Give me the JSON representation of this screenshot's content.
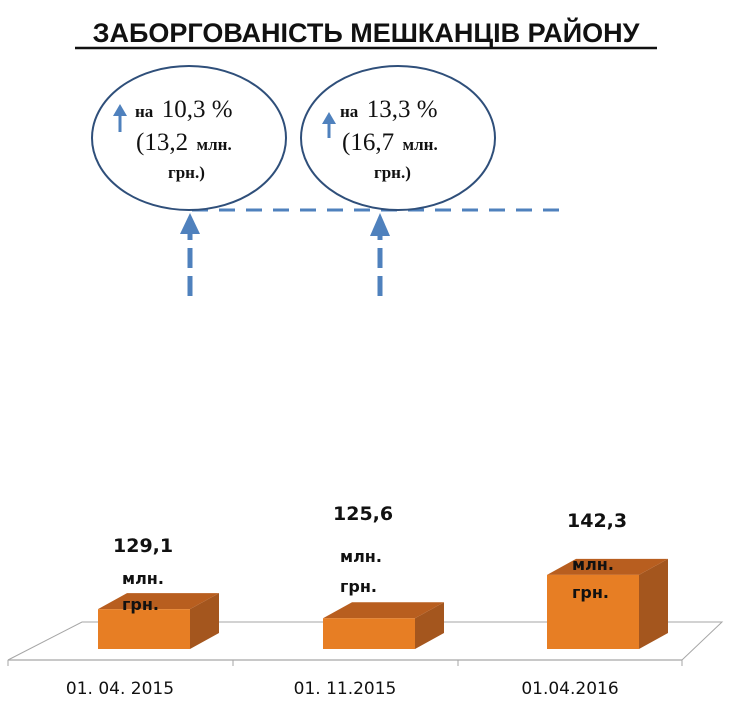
{
  "chart_data": {
    "type": "bar",
    "title": "ЗАБОРГОВАНІСТЬ МЕШКАНЦІВ РАЙОНУ",
    "categories": [
      "01. 04. 2015",
      "01. 11.2015",
      "01.04.2016"
    ],
    "values": [
      129.1,
      125.6,
      142.3
    ],
    "value_labels": [
      "129,1",
      "125,6",
      "142,3"
    ],
    "unit_lines": [
      "млн.",
      "грн."
    ],
    "annotations": [
      {
        "line1_prefix": "на",
        "line1_value": "10,3 %",
        "line2_open": "(13,2",
        "line2_unit": "млн.",
        "line3": "грн.)"
      },
      {
        "line1_prefix": "на",
        "line1_value": "13,3 %",
        "line2_open": "(16,7",
        "line2_unit": "млн.",
        "line3": "грн.)"
      }
    ],
    "colors": {
      "bar_front": "#E77E24",
      "bar_side": "#A4561E",
      "bar_top": "#B85E1F",
      "ellipse_border": "#2F4F7A",
      "arrow": "#4F81BD",
      "floor": "#A6A6A6"
    }
  }
}
